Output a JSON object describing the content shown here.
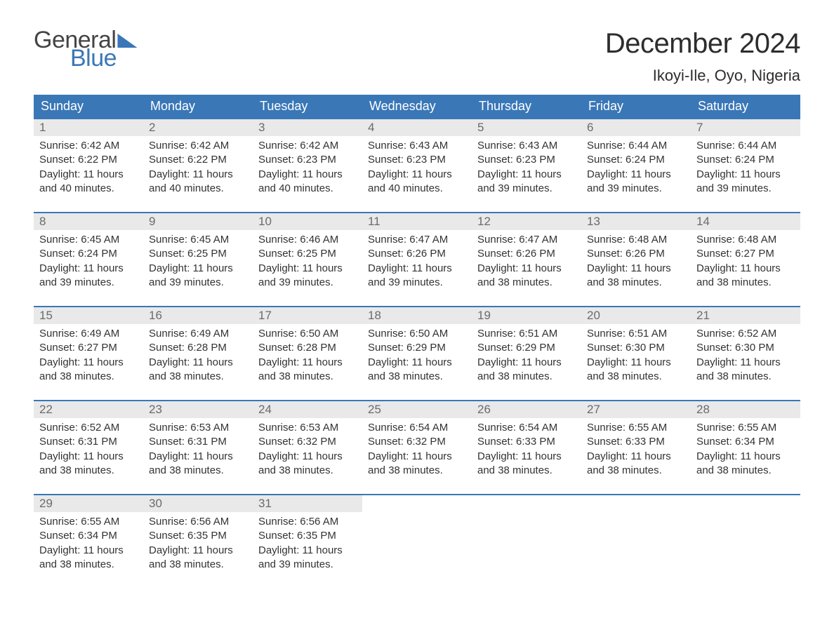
{
  "logo": {
    "general": "General",
    "blue": "Blue"
  },
  "title": "December 2024",
  "location": "Ikoyi-Ile, Oyo, Nigeria",
  "colors": {
    "brand": "#3a77b7",
    "header_bg": "#3a77b7",
    "header_text": "#ffffff",
    "daynum_bg": "#e9e9e9",
    "daynum_text": "#6b6b6b",
    "body_text": "#333333",
    "page_bg": "#ffffff"
  },
  "days_of_week": [
    "Sunday",
    "Monday",
    "Tuesday",
    "Wednesday",
    "Thursday",
    "Friday",
    "Saturday"
  ],
  "weeks": [
    [
      {
        "n": "1",
        "sunrise": "Sunrise: 6:42 AM",
        "sunset": "Sunset: 6:22 PM",
        "daylight": "Daylight: 11 hours and 40 minutes."
      },
      {
        "n": "2",
        "sunrise": "Sunrise: 6:42 AM",
        "sunset": "Sunset: 6:22 PM",
        "daylight": "Daylight: 11 hours and 40 minutes."
      },
      {
        "n": "3",
        "sunrise": "Sunrise: 6:42 AM",
        "sunset": "Sunset: 6:23 PM",
        "daylight": "Daylight: 11 hours and 40 minutes."
      },
      {
        "n": "4",
        "sunrise": "Sunrise: 6:43 AM",
        "sunset": "Sunset: 6:23 PM",
        "daylight": "Daylight: 11 hours and 40 minutes."
      },
      {
        "n": "5",
        "sunrise": "Sunrise: 6:43 AM",
        "sunset": "Sunset: 6:23 PM",
        "daylight": "Daylight: 11 hours and 39 minutes."
      },
      {
        "n": "6",
        "sunrise": "Sunrise: 6:44 AM",
        "sunset": "Sunset: 6:24 PM",
        "daylight": "Daylight: 11 hours and 39 minutes."
      },
      {
        "n": "7",
        "sunrise": "Sunrise: 6:44 AM",
        "sunset": "Sunset: 6:24 PM",
        "daylight": "Daylight: 11 hours and 39 minutes."
      }
    ],
    [
      {
        "n": "8",
        "sunrise": "Sunrise: 6:45 AM",
        "sunset": "Sunset: 6:24 PM",
        "daylight": "Daylight: 11 hours and 39 minutes."
      },
      {
        "n": "9",
        "sunrise": "Sunrise: 6:45 AM",
        "sunset": "Sunset: 6:25 PM",
        "daylight": "Daylight: 11 hours and 39 minutes."
      },
      {
        "n": "10",
        "sunrise": "Sunrise: 6:46 AM",
        "sunset": "Sunset: 6:25 PM",
        "daylight": "Daylight: 11 hours and 39 minutes."
      },
      {
        "n": "11",
        "sunrise": "Sunrise: 6:47 AM",
        "sunset": "Sunset: 6:26 PM",
        "daylight": "Daylight: 11 hours and 39 minutes."
      },
      {
        "n": "12",
        "sunrise": "Sunrise: 6:47 AM",
        "sunset": "Sunset: 6:26 PM",
        "daylight": "Daylight: 11 hours and 38 minutes."
      },
      {
        "n": "13",
        "sunrise": "Sunrise: 6:48 AM",
        "sunset": "Sunset: 6:26 PM",
        "daylight": "Daylight: 11 hours and 38 minutes."
      },
      {
        "n": "14",
        "sunrise": "Sunrise: 6:48 AM",
        "sunset": "Sunset: 6:27 PM",
        "daylight": "Daylight: 11 hours and 38 minutes."
      }
    ],
    [
      {
        "n": "15",
        "sunrise": "Sunrise: 6:49 AM",
        "sunset": "Sunset: 6:27 PM",
        "daylight": "Daylight: 11 hours and 38 minutes."
      },
      {
        "n": "16",
        "sunrise": "Sunrise: 6:49 AM",
        "sunset": "Sunset: 6:28 PM",
        "daylight": "Daylight: 11 hours and 38 minutes."
      },
      {
        "n": "17",
        "sunrise": "Sunrise: 6:50 AM",
        "sunset": "Sunset: 6:28 PM",
        "daylight": "Daylight: 11 hours and 38 minutes."
      },
      {
        "n": "18",
        "sunrise": "Sunrise: 6:50 AM",
        "sunset": "Sunset: 6:29 PM",
        "daylight": "Daylight: 11 hours and 38 minutes."
      },
      {
        "n": "19",
        "sunrise": "Sunrise: 6:51 AM",
        "sunset": "Sunset: 6:29 PM",
        "daylight": "Daylight: 11 hours and 38 minutes."
      },
      {
        "n": "20",
        "sunrise": "Sunrise: 6:51 AM",
        "sunset": "Sunset: 6:30 PM",
        "daylight": "Daylight: 11 hours and 38 minutes."
      },
      {
        "n": "21",
        "sunrise": "Sunrise: 6:52 AM",
        "sunset": "Sunset: 6:30 PM",
        "daylight": "Daylight: 11 hours and 38 minutes."
      }
    ],
    [
      {
        "n": "22",
        "sunrise": "Sunrise: 6:52 AM",
        "sunset": "Sunset: 6:31 PM",
        "daylight": "Daylight: 11 hours and 38 minutes."
      },
      {
        "n": "23",
        "sunrise": "Sunrise: 6:53 AM",
        "sunset": "Sunset: 6:31 PM",
        "daylight": "Daylight: 11 hours and 38 minutes."
      },
      {
        "n": "24",
        "sunrise": "Sunrise: 6:53 AM",
        "sunset": "Sunset: 6:32 PM",
        "daylight": "Daylight: 11 hours and 38 minutes."
      },
      {
        "n": "25",
        "sunrise": "Sunrise: 6:54 AM",
        "sunset": "Sunset: 6:32 PM",
        "daylight": "Daylight: 11 hours and 38 minutes."
      },
      {
        "n": "26",
        "sunrise": "Sunrise: 6:54 AM",
        "sunset": "Sunset: 6:33 PM",
        "daylight": "Daylight: 11 hours and 38 minutes."
      },
      {
        "n": "27",
        "sunrise": "Sunrise: 6:55 AM",
        "sunset": "Sunset: 6:33 PM",
        "daylight": "Daylight: 11 hours and 38 minutes."
      },
      {
        "n": "28",
        "sunrise": "Sunrise: 6:55 AM",
        "sunset": "Sunset: 6:34 PM",
        "daylight": "Daylight: 11 hours and 38 minutes."
      }
    ],
    [
      {
        "n": "29",
        "sunrise": "Sunrise: 6:55 AM",
        "sunset": "Sunset: 6:34 PM",
        "daylight": "Daylight: 11 hours and 38 minutes."
      },
      {
        "n": "30",
        "sunrise": "Sunrise: 6:56 AM",
        "sunset": "Sunset: 6:35 PM",
        "daylight": "Daylight: 11 hours and 38 minutes."
      },
      {
        "n": "31",
        "sunrise": "Sunrise: 6:56 AM",
        "sunset": "Sunset: 6:35 PM",
        "daylight": "Daylight: 11 hours and 39 minutes."
      },
      {
        "empty": true
      },
      {
        "empty": true
      },
      {
        "empty": true
      },
      {
        "empty": true
      }
    ]
  ]
}
